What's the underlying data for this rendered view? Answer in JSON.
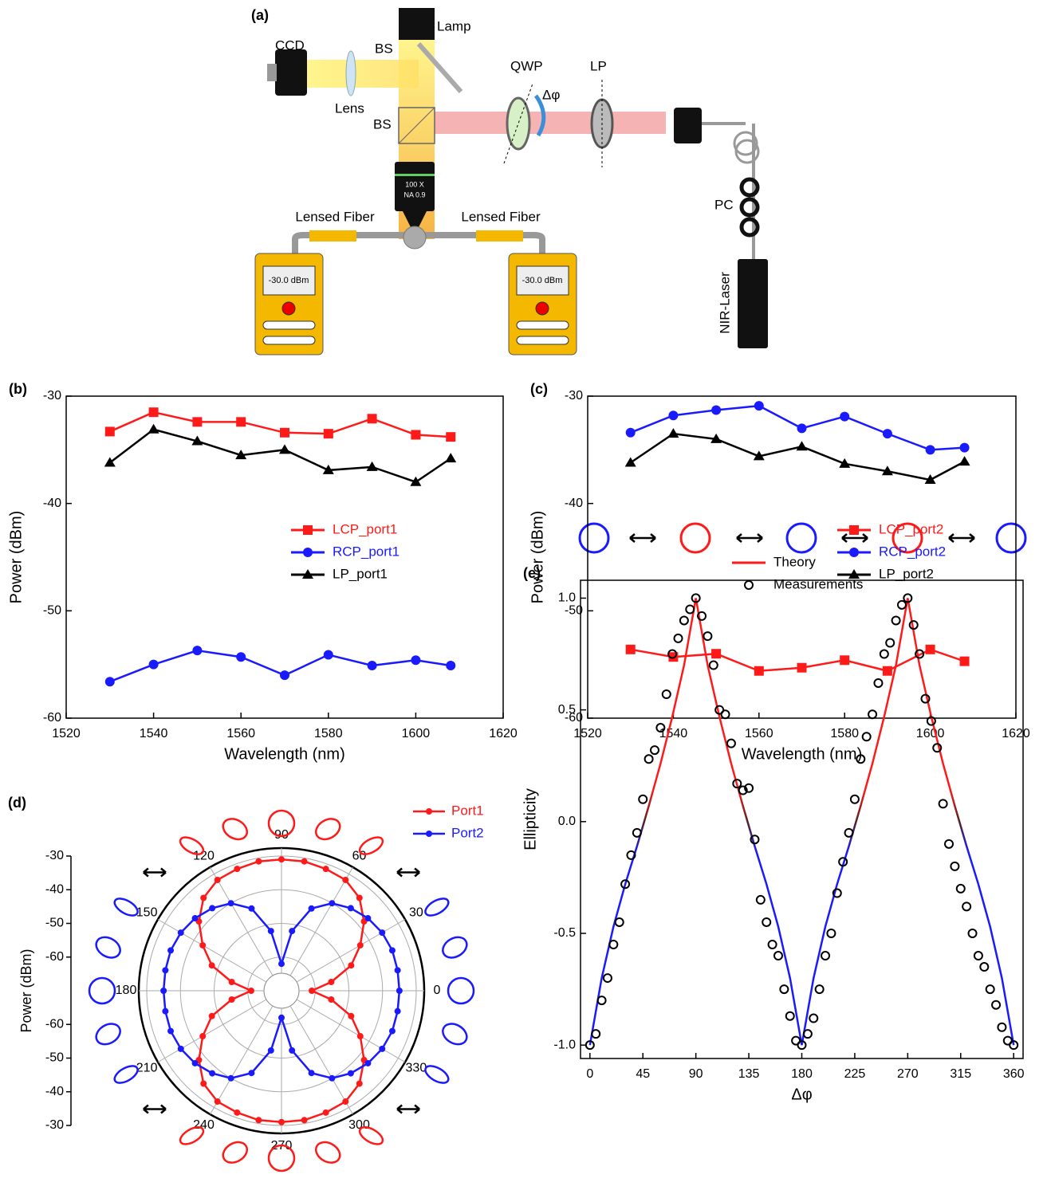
{
  "setup": {
    "label": "(a)",
    "ccd": "CCD",
    "lamp": "Lamp",
    "bs_top": "BS",
    "bs_cube": "BS",
    "lens": "Lens",
    "qwp": "QWP",
    "lp": "LP",
    "dphi": "Δφ",
    "objective_mag": "100 X",
    "objective_na": "NA 0.9",
    "fiber_left": "Lensed Fiber",
    "fiber_right": "Lensed Fiber",
    "meter_left": "-30.0 dBm",
    "meter_right": "-30.0 dBm",
    "pc": "PC",
    "laser": "NIR-Laser"
  },
  "chart_data": [
    {
      "type": "line",
      "panel_label": "(b)",
      "xlabel": "Wavelength (nm)",
      "ylabel": "Power (dBm)",
      "x": [
        1530,
        1540,
        1550,
        1560,
        1570,
        1580,
        1590,
        1600,
        1608
      ],
      "xlim": [
        1520,
        1620
      ],
      "xticks": [
        1520,
        1540,
        1560,
        1580,
        1600,
        1620
      ],
      "ylim": [
        -60,
        -30
      ],
      "yticks": [
        -60,
        -50,
        -40,
        -30
      ],
      "series": [
        {
          "name": "LCP_port1",
          "color": "#ff1a1a",
          "marker": "square",
          "mode": "lines+markers",
          "values": [
            -33.3,
            -31.5,
            -32.4,
            -32.4,
            -33.4,
            -33.5,
            -32.1,
            -33.6,
            -33.8
          ]
        },
        {
          "name": "RCP_port1",
          "color": "#1a1aff",
          "marker": "circle",
          "mode": "lines+markers",
          "values": [
            -56.6,
            -55.0,
            -53.7,
            -54.3,
            -56.0,
            -54.1,
            -55.1,
            -54.6,
            -55.1
          ]
        },
        {
          "name": "LP_port1",
          "color": "#000000",
          "marker": "triangle",
          "mode": "lines+markers",
          "values": [
            -36.2,
            -33.1,
            -34.2,
            -35.5,
            -35.0,
            -36.9,
            -36.6,
            -38.0,
            -35.8
          ]
        }
      ]
    },
    {
      "type": "line",
      "panel_label": "(c)",
      "xlabel": "Wavelength (nm)",
      "ylabel": "Power (dBm)",
      "x": [
        1530,
        1540,
        1550,
        1560,
        1570,
        1580,
        1590,
        1600,
        1608
      ],
      "xlim": [
        1520,
        1620
      ],
      "xticks": [
        1520,
        1540,
        1560,
        1580,
        1600,
        1620
      ],
      "ylim": [
        -60,
        -30
      ],
      "yticks": [
        -60,
        -50,
        -40,
        -30
      ],
      "series": [
        {
          "name": "LCP_port2",
          "color": "#ff1a1a",
          "marker": "square",
          "mode": "lines+markers",
          "values": [
            -53.6,
            -54.3,
            -54.0,
            -55.6,
            -55.3,
            -54.6,
            -55.6,
            -53.6,
            -54.7
          ]
        },
        {
          "name": "RCP_port2",
          "color": "#1a1aff",
          "marker": "circle",
          "mode": "lines+markers",
          "values": [
            -33.4,
            -31.8,
            -31.3,
            -30.9,
            -33.0,
            -31.9,
            -33.5,
            -35.0,
            -34.8
          ]
        },
        {
          "name": "LP_port2",
          "color": "#000000",
          "marker": "triangle",
          "mode": "lines+markers",
          "values": [
            -36.2,
            -33.5,
            -34.0,
            -35.6,
            -34.7,
            -36.3,
            -37.0,
            -37.8,
            -36.1
          ]
        }
      ]
    },
    {
      "type": "polar",
      "panel_label": "(d)",
      "rlabel": "Power (dBm)",
      "theta": [
        0,
        10,
        20,
        30,
        40,
        50,
        60,
        70,
        80,
        90,
        100,
        110,
        120,
        130,
        140,
        150,
        160,
        170,
        180,
        190,
        200,
        210,
        220,
        230,
        240,
        250,
        260,
        270,
        280,
        290,
        300,
        310,
        320,
        330,
        340,
        350
      ],
      "rlim": [
        -70,
        -30
      ],
      "rticks": [
        -60,
        -50,
        -40,
        -30
      ],
      "thetaticks": [
        0,
        30,
        60,
        90,
        120,
        150,
        180,
        210,
        240,
        270,
        300,
        330
      ],
      "series": [
        {
          "name": "Port1",
          "color": "#ff1a1a",
          "values": [
            -61,
            -55,
            -48,
            -43,
            -38,
            -34,
            -32,
            -31.5,
            -31,
            -31,
            -31,
            -31.5,
            -32,
            -34,
            -38,
            -43,
            -48,
            -55,
            -61,
            -55,
            -48,
            -43,
            -38,
            -34,
            -32,
            -31.5,
            -31,
            -31,
            -31,
            -31.5,
            -32,
            -34,
            -38,
            -43,
            -48,
            -55
          ]
        },
        {
          "name": "Port2",
          "color": "#1a1aff",
          "values": [
            -35,
            -35,
            -35,
            -35.5,
            -36.5,
            -38,
            -40,
            -44,
            -52,
            -62,
            -52,
            -44,
            -40,
            -38,
            -36.5,
            -35.5,
            -35,
            -35,
            -35,
            -35,
            -35,
            -35.5,
            -36.5,
            -38,
            -40,
            -44,
            -52,
            -62,
            -52,
            -44,
            -40,
            -38,
            -36.5,
            -35.5,
            -35,
            -35
          ]
        }
      ]
    },
    {
      "type": "line",
      "panel_label": "(e)",
      "xlabel": "Δφ",
      "ylabel": "Ellipticity",
      "xlim": [
        -8,
        368
      ],
      "xticks": [
        0,
        45,
        90,
        135,
        180,
        225,
        270,
        315,
        360
      ],
      "ylim": [
        -1.06,
        1.08
      ],
      "yticks": [
        {
          "value": -1,
          "label": "-1.0"
        },
        {
          "value": -0.5,
          "label": "-0.5"
        },
        {
          "value": 0,
          "label": "0.0"
        },
        {
          "value": 0.5,
          "label": "0.5"
        },
        {
          "value": 1,
          "label": "1.0"
        }
      ],
      "series": [
        {
          "name": "Theory",
          "color": "#ff1a1a",
          "color_negative": "#1a1aff",
          "mode": "lines",
          "x": [
            0,
            10,
            20,
            30,
            40,
            50,
            60,
            70,
            80,
            90,
            100,
            110,
            120,
            130,
            140,
            150,
            160,
            170,
            180,
            190,
            200,
            210,
            220,
            230,
            240,
            250,
            260,
            270,
            280,
            290,
            300,
            310,
            320,
            330,
            340,
            350,
            360
          ],
          "values": [
            -1,
            -0.7,
            -0.47,
            -0.28,
            -0.11,
            0.07,
            0.26,
            0.47,
            0.7,
            1,
            0.7,
            0.47,
            0.26,
            0.07,
            -0.11,
            -0.28,
            -0.47,
            -0.7,
            -1,
            -0.7,
            -0.47,
            -0.28,
            -0.11,
            0.07,
            0.26,
            0.47,
            0.7,
            1,
            0.7,
            0.47,
            0.26,
            0.07,
            -0.11,
            -0.28,
            -0.47,
            -0.7,
            -1
          ]
        },
        {
          "name": "Measurements",
          "color": "#000000",
          "marker": "open circle",
          "mode": "markers",
          "x": [
            0,
            5,
            10,
            15,
            20,
            25,
            30,
            35,
            40,
            45,
            50,
            55,
            60,
            65,
            70,
            75,
            80,
            85,
            90,
            95,
            100,
            105,
            110,
            115,
            120,
            125,
            130,
            135,
            140,
            145,
            150,
            155,
            160,
            165,
            170,
            175,
            180,
            185,
            190,
            195,
            200,
            205,
            210,
            215,
            220,
            225,
            230,
            235,
            240,
            245,
            250,
            255,
            260,
            265,
            270,
            275,
            280,
            285,
            290,
            295,
            300,
            305,
            310,
            315,
            320,
            325,
            330,
            335,
            340,
            345,
            350,
            355,
            360
          ],
          "values": [
            -1.0,
            -0.95,
            -0.8,
            -0.7,
            -0.55,
            -0.45,
            -0.28,
            -0.15,
            -0.05,
            0.1,
            0.28,
            0.32,
            0.42,
            0.57,
            0.75,
            0.82,
            0.9,
            0.95,
            1.0,
            0.92,
            0.83,
            0.7,
            0.5,
            0.48,
            0.35,
            0.17,
            0.14,
            0.15,
            -0.08,
            -0.35,
            -0.45,
            -0.55,
            -0.6,
            -0.75,
            -0.87,
            -0.98,
            -1.0,
            -0.95,
            -0.88,
            -0.75,
            -0.6,
            -0.5,
            -0.32,
            -0.18,
            -0.05,
            0.1,
            0.28,
            0.38,
            0.48,
            0.62,
            0.75,
            0.8,
            0.9,
            0.97,
            1.0,
            0.88,
            0.75,
            0.55,
            0.45,
            0.33,
            0.08,
            -0.1,
            -0.2,
            -0.3,
            -0.38,
            -0.5,
            -0.6,
            -0.65,
            -0.75,
            -0.82,
            -0.92,
            -0.98,
            -1.0
          ]
        }
      ]
    }
  ]
}
